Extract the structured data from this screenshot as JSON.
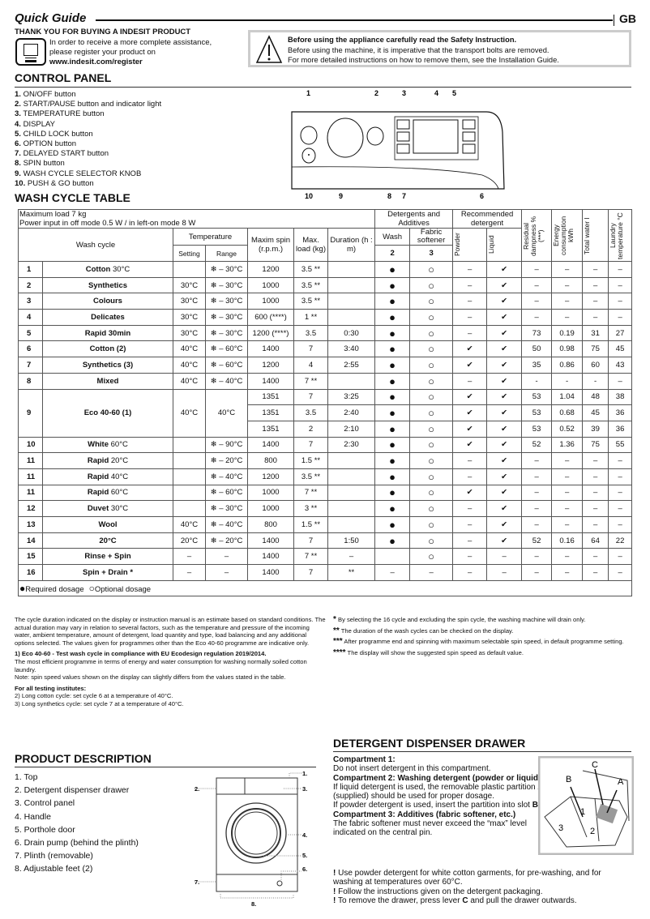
{
  "header": {
    "title": "Quick Guide",
    "lang": "GB",
    "thanks": "THANK YOU FOR BUYING A INDESIT PRODUCT",
    "register_line1": "In order to receive a more complete assistance,",
    "register_line2": "please register your product on",
    "register_url": "www.indesit.com/register"
  },
  "warning": {
    "bold": "Before using the appliance carefully read the Safety Instruction.",
    "line2": "Before using the machine, it is imperative that the transport bolts are removed.",
    "line3": "For more detailed instructions on how to remove them, see the Installation Guide."
  },
  "control_panel": {
    "title": "CONTROL PANEL",
    "items": [
      {
        "n": "1.",
        "label": "ON/OFF button"
      },
      {
        "n": "2.",
        "label": "START/PAUSE button and indicator light"
      },
      {
        "n": "3.",
        "label": "TEMPERATURE button"
      },
      {
        "n": "4.",
        "label": "DISPLAY"
      },
      {
        "n": "5.",
        "label": "CHILD LOCK button"
      },
      {
        "n": "6.",
        "label": "OPTION button"
      },
      {
        "n": "7.",
        "label": "DELAYED START button"
      },
      {
        "n": "8.",
        "label": "SPIN button"
      },
      {
        "n": "9.",
        "label": "WASH CYCLE SELECTOR KNOB"
      },
      {
        "n": "10.",
        "label": "PUSH & GO button"
      }
    ],
    "diagram_labels": {
      "top": [
        "1",
        "2",
        "3",
        "4",
        "5"
      ],
      "bottom": [
        "10",
        "9",
        "8",
        "7",
        "6"
      ]
    }
  },
  "wash_table": {
    "title": "WASH CYCLE TABLE",
    "info1": "Maximum load 7 kg",
    "info2": "Power input in off  mode 0.5 W / in left-on mode 8 W",
    "headers": {
      "wash_cycle": "Wash cycle",
      "temperature": "Temperature",
      "setting": "Setting",
      "range": "Range",
      "spin": "Maxim spin (r.p.m.)",
      "load": "Max. load (kg)",
      "duration": "Duration (h : m)",
      "detergents": "Detergents and Additives",
      "wash": "Wash",
      "wash_n": "2",
      "fabric": "Fabric softener",
      "fabric_n": "3",
      "recommended": "Recommended detergent",
      "powder": "Powder",
      "liquid": "Liquid",
      "residual": "Residual dampness % (***)",
      "energy": "Energy consumption kWh",
      "water": "Total water l",
      "laundry": "Laundry temperature °C"
    },
    "rows": [
      {
        "num": "1",
        "bold": "Cotton",
        "rest": " 30°C",
        "setting": "",
        "range": "❄ – 30°C",
        "spin": "1200",
        "load": "3.5 **",
        "duration": "",
        "wash": "●",
        "fabric": "○",
        "powder": "–",
        "liquid": "✔",
        "resid": "–",
        "energy": "–",
        "water": "–",
        "laundry": "–"
      },
      {
        "num": "2",
        "bold": "Synthetics",
        "rest": "",
        "setting": "30°C",
        "range": "❄ – 30°C",
        "spin": "1000",
        "load": "3.5 **",
        "duration": "",
        "wash": "●",
        "fabric": "○",
        "powder": "–",
        "liquid": "✔",
        "resid": "–",
        "energy": "–",
        "water": "–",
        "laundry": "–"
      },
      {
        "num": "3",
        "bold": "Colours",
        "rest": "",
        "setting": "30°C",
        "range": "❄ – 30°C",
        "spin": "1000",
        "load": "3.5 **",
        "duration": "",
        "wash": "●",
        "fabric": "○",
        "powder": "–",
        "liquid": "✔",
        "resid": "–",
        "energy": "–",
        "water": "–",
        "laundry": "–"
      },
      {
        "num": "4",
        "bold": "Delicates",
        "rest": "",
        "setting": "30°C",
        "range": "❄ – 30°C",
        "spin": "600 (****)",
        "load": "1 **",
        "duration": "",
        "wash": "●",
        "fabric": "○",
        "powder": "–",
        "liquid": "✔",
        "resid": "–",
        "energy": "–",
        "water": "–",
        "laundry": "–"
      },
      {
        "num": "5",
        "bold": "Rapid 30min",
        "rest": "",
        "setting": "30°C",
        "range": "❄ – 30°C",
        "spin": "1200 (****)",
        "load": "3.5",
        "duration": "0:30",
        "wash": "●",
        "fabric": "○",
        "powder": "–",
        "liquid": "✔",
        "resid": "73",
        "energy": "0.19",
        "water": "31",
        "laundry": "27"
      },
      {
        "num": "6",
        "bold": "Cotton (2)",
        "rest": "",
        "setting": "40°C",
        "range": "❄ – 60°C",
        "spin": "1400",
        "load": "7",
        "duration": "3:40",
        "wash": "●",
        "fabric": "○",
        "powder": "✔",
        "liquid": "✔",
        "resid": "50",
        "energy": "0.98",
        "water": "75",
        "laundry": "45"
      },
      {
        "num": "7",
        "bold": "Synthetics (3)",
        "rest": "",
        "setting": "40°C",
        "range": "❄ – 60°C",
        "spin": "1200",
        "load": "4",
        "duration": "2:55",
        "wash": "●",
        "fabric": "○",
        "powder": "✔",
        "liquid": "✔",
        "resid": "35",
        "energy": "0.86",
        "water": "60",
        "laundry": "43"
      },
      {
        "num": "8",
        "bold": "Mixed",
        "rest": "",
        "setting": "40°C",
        "range": "❄ – 40°C",
        "spin": "1400",
        "load": "7 **",
        "duration": "",
        "wash": "●",
        "fabric": "○",
        "powder": "–",
        "liquid": "✔",
        "resid": "-",
        "energy": "-",
        "water": "-",
        "laundry": "–"
      },
      {
        "num": "9",
        "bold": "Eco 40-60 (1)",
        "rest": "",
        "setting": "40°C",
        "range": "40°C",
        "sub": [
          {
            "spin": "1351",
            "load": "7",
            "duration": "3:25",
            "wash": "●",
            "fabric": "○",
            "powder": "✔",
            "liquid": "✔",
            "resid": "53",
            "energy": "1.04",
            "water": "48",
            "laundry": "38"
          },
          {
            "spin": "1351",
            "load": "3.5",
            "duration": "2:40",
            "wash": "●",
            "fabric": "○",
            "powder": "✔",
            "liquid": "✔",
            "resid": "53",
            "energy": "0.68",
            "water": "45",
            "laundry": "36"
          },
          {
            "spin": "1351",
            "load": "2",
            "duration": "2:10",
            "wash": "●",
            "fabric": "○",
            "powder": "✔",
            "liquid": "✔",
            "resid": "53",
            "energy": "0.52",
            "water": "39",
            "laundry": "36"
          }
        ]
      },
      {
        "num": "10",
        "bold": "White",
        "rest": " 60°C",
        "setting": "",
        "range": "❄ – 90°C",
        "spin": "1400",
        "load": "7",
        "duration": "2:30",
        "wash": "●",
        "fabric": "○",
        "powder": "✔",
        "liquid": "✔",
        "resid": "52",
        "energy": "1.36",
        "water": "75",
        "laundry": "55"
      },
      {
        "num": "11",
        "bold": "Rapid",
        "rest": " 20°C",
        "setting": "",
        "range": "❄ – 20°C",
        "spin": "800",
        "load": "1.5 **",
        "duration": "",
        "wash": "●",
        "fabric": "○",
        "powder": "–",
        "liquid": "✔",
        "resid": "–",
        "energy": "–",
        "water": "–",
        "laundry": "–"
      },
      {
        "num": "11",
        "bold": "Rapid",
        "rest": " 40°C",
        "setting": "",
        "range": "❄ – 40°C",
        "spin": "1200",
        "load": "3.5 **",
        "duration": "",
        "wash": "●",
        "fabric": "○",
        "powder": "–",
        "liquid": "✔",
        "resid": "–",
        "energy": "–",
        "water": "–",
        "laundry": "–"
      },
      {
        "num": "11",
        "bold": "Rapid",
        "rest": " 60°C",
        "setting": "",
        "range": "❄ – 60°C",
        "spin": "1000",
        "load": "7 **",
        "duration": "",
        "wash": "●",
        "fabric": "○",
        "powder": "✔",
        "liquid": "✔",
        "resid": "–",
        "energy": "–",
        "water": "–",
        "laundry": "–"
      },
      {
        "num": "12",
        "bold": "Duvet",
        "rest": " 30°C",
        "setting": "",
        "range": "❄ – 30°C",
        "spin": "1000",
        "load": "3 **",
        "duration": "",
        "wash": "●",
        "fabric": "○",
        "powder": "–",
        "liquid": "✔",
        "resid": "–",
        "energy": "–",
        "water": "–",
        "laundry": "–"
      },
      {
        "num": "13",
        "bold": "Wool",
        "rest": "",
        "setting": "40°C",
        "range": "❄ – 40°C",
        "spin": "800",
        "load": "1.5 **",
        "duration": "",
        "wash": "●",
        "fabric": "○",
        "powder": "–",
        "liquid": "✔",
        "resid": "–",
        "energy": "–",
        "water": "–",
        "laundry": "–"
      },
      {
        "num": "14",
        "bold": "20°C",
        "rest": "",
        "setting": "20°C",
        "range": "❄ – 20°C",
        "spin": "1400",
        "load": "7",
        "duration": "1:50",
        "wash": "●",
        "fabric": "○",
        "powder": "–",
        "liquid": "✔",
        "resid": "52",
        "energy": "0.16",
        "water": "64",
        "laundry": "22"
      },
      {
        "num": "15",
        "bold": "Rinse + Spin",
        "rest": "",
        "setting": "–",
        "range": "–",
        "spin": "1400",
        "load": "7 **",
        "duration": "–",
        "wash": "",
        "fabric": "○",
        "powder": "–",
        "liquid": "–",
        "resid": "–",
        "energy": "–",
        "water": "–",
        "laundry": "–"
      },
      {
        "num": "16",
        "bold": "Spin + Drain *",
        "rest": "",
        "setting": "–",
        "range": "–",
        "spin": "1400",
        "load": "7",
        "duration": "**",
        "wash": "–",
        "fabric": "–",
        "powder": "–",
        "liquid": "–",
        "resid": "–",
        "energy": "–",
        "water": "–",
        "laundry": "–"
      }
    ],
    "legend_required": "Required dosage",
    "legend_optional": "Optional dosage"
  },
  "notes": {
    "left": [
      "The cycle duration indicated on the display or instruction manual is an estimate based on standard conditions. The actual duration may vary in relation to several factors, such as the temperature and pressure of the incoming water, ambient temperature, amount of detergent, load quantity and type, load balancing and any additional options selected. The values given for programmes other than the Eco 40-60 programme are indicative only."
    ],
    "eco_title": "1) Eco 40-60 - Test wash cycle in compliance with EU Ecodesign regulation 2019/2014.",
    "eco_text": "The most efficient programme in terms of energy and water consumption for washing normally soiled cotton laundry.",
    "eco_note": "Note: spin speed values shown on the display can slightly differs from the values stated in the table.",
    "testing_title": "For all testing institutes:",
    "testing_2": "2)  Long cotton cycle: set cycle 6 at a temperature of 40°C.",
    "testing_3": "3)  Long synthetics cycle: set cycle 7 at a temperature of 40°C.",
    "right": [
      {
        "mark": "*",
        "text": " By selecting the 16 cycle and excluding the spin cycle, the washing machine will drain only."
      },
      {
        "mark": "**",
        "text": "  The duration of the wash cycles can be checked on the display."
      },
      {
        "mark": "***",
        "text": "  After programme end and spinning with maximum selectable spin speed, in default programme setting."
      },
      {
        "mark": "****",
        "text": " The display will show the suggested spin speed as default value."
      }
    ]
  },
  "product_description": {
    "title": "PRODUCT DESCRIPTION",
    "items": [
      "1. Top",
      "2. Detergent dispenser drawer",
      "3. Control panel",
      "4. Handle",
      "5. Porthole door",
      "6. Drain pump (behind the plinth)",
      "7. Plinth (removable)",
      "8. Adjustable feet (2)"
    ],
    "callouts": [
      "1.",
      "2.",
      "3.",
      "4.",
      "5.",
      "6.",
      "7.",
      "8."
    ]
  },
  "dispenser": {
    "title": "DETERGENT DISPENSER DRAWER",
    "c1_title": "Compartment 1:",
    "c1_text": "Do not insert detergent in this compartment.",
    "c2_title": "Compartment 2: Washing detergent (powder or liquid)",
    "c2_text1a": "If liquid detergent is used, the removable plastic partition ",
    "c2_A": "A",
    "c2_text1b": " (supplied) should be used for proper dosage.",
    "c2_text2a": "If powder detergent is used, insert the partition into slot ",
    "c2_B": "B",
    "c2_text2b": ".",
    "c3_title": "Compartment 3: Additives (fabric softener, etc.)",
    "c3_text": "The fabric softener must never exceed the “max” level indicated on the central pin.",
    "tip1": " Use powder detergent for white cotton garments, for pre-washing, and for washing at temperatures over 60°C.",
    "tip2": " Follow the instructions given on the detergent packaging.",
    "tip3a": " To remove the drawer, press lever ",
    "tip3_C": "C",
    "tip3b": " and pull the drawer outwards.",
    "tip_mark": "!",
    "diagram_labels": [
      "A",
      "B",
      "C",
      "1",
      "2",
      "3"
    ]
  }
}
